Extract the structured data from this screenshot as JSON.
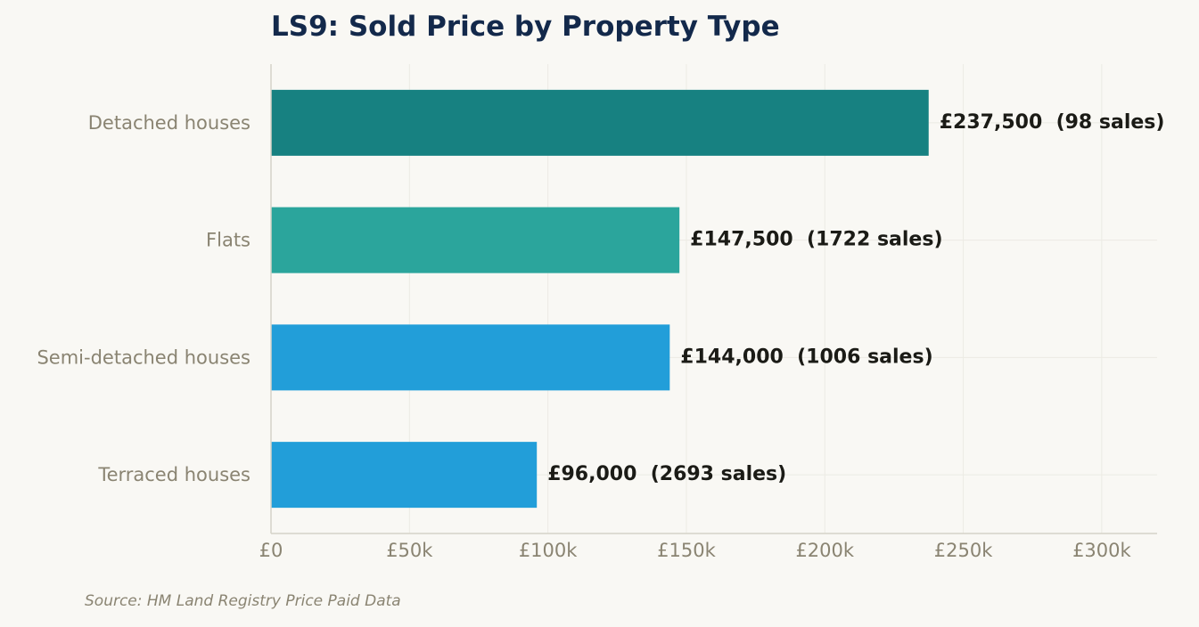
{
  "chart_data": {
    "type": "bar",
    "orientation": "horizontal",
    "title": "LS9: Sold Price by Property Type",
    "categories": [
      "Detached houses",
      "Flats",
      "Semi-detached houses",
      "Terraced houses"
    ],
    "values": [
      237500,
      147500,
      144000,
      96000
    ],
    "sales": [
      98,
      1722,
      1006,
      2693
    ],
    "value_labels": [
      "£237,500  (98 sales)",
      "£147,500  (1722 sales)",
      "£144,000  (1006 sales)",
      "£96,000  (2693 sales)"
    ],
    "bar_colors": [
      "#178181",
      "#2ba59c",
      "#229ed9",
      "#229ed9"
    ],
    "xlim": [
      0,
      320000
    ],
    "xticks": [
      0,
      50000,
      100000,
      150000,
      200000,
      250000,
      300000
    ],
    "xtick_labels": [
      "£0",
      "£50k",
      "£100k",
      "£150k",
      "£200k",
      "£250k",
      "£300k"
    ],
    "xlabel": "",
    "ylabel": "",
    "grid": true
  },
  "source": "Source: HM Land Registry Price Paid Data"
}
